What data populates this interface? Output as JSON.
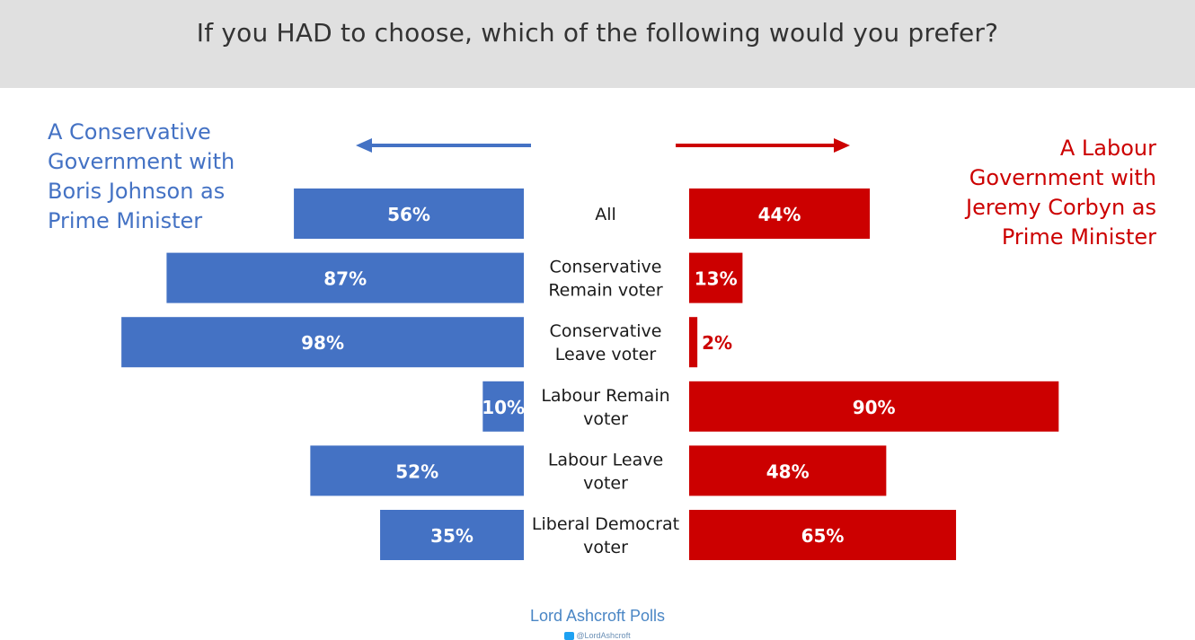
{
  "header": {
    "title": "If you HAD to choose, which of the following would you prefer?"
  },
  "legend": {
    "left": "A Conservative Government with Boris Johnson as Prime Minister",
    "right": "A Labour Government with Jeremy Corbyn as Prime Minister"
  },
  "colors": {
    "conservative": "#4472c4",
    "labour": "#cc0000",
    "header_bg": "#e0e0e0"
  },
  "chart_data": {
    "type": "bar",
    "title": "If you HAD to choose, which of the following would you prefer?",
    "categories": [
      "All",
      "Conservative Remain voter",
      "Conservative Leave voter",
      "Labour Remain voter",
      "Labour Leave voter",
      "Liberal Democrat voter"
    ],
    "series": [
      {
        "name": "A Conservative Government with Boris Johnson as Prime Minister",
        "values": [
          56,
          87,
          98,
          10,
          52,
          35
        ],
        "labels": [
          "56%",
          "87%",
          "98%",
          "10%",
          "52%",
          "35%"
        ]
      },
      {
        "name": "A Labour Government with Jeremy Corbyn as Prime Minister",
        "values": [
          44,
          13,
          2,
          90,
          48,
          65
        ],
        "labels": [
          "44%",
          "13%",
          "2%",
          "90%",
          "48%",
          "65%"
        ]
      }
    ],
    "ylim": [
      0,
      100
    ]
  },
  "footer": {
    "brand": "Lord Ashcroft Polls",
    "twitter": "@LordAshcroft"
  }
}
